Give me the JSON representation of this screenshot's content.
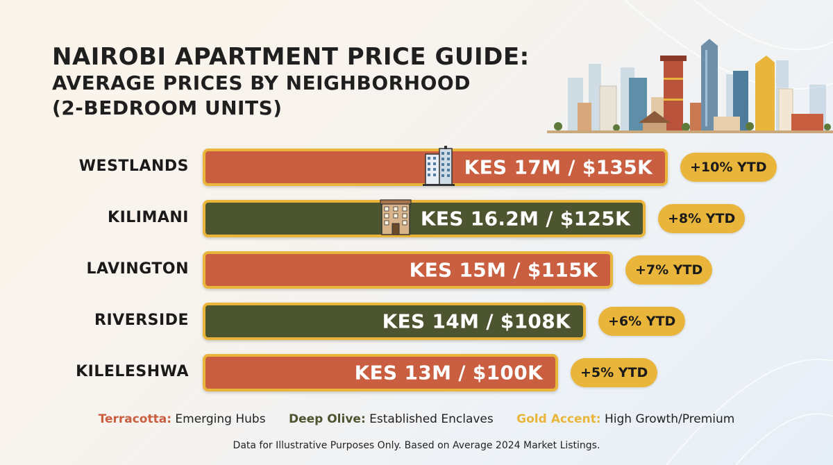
{
  "title": {
    "line1": "NAIROBI APARTMENT PRICE GUIDE:",
    "line2": "AVERAGE PRICES BY NEIGHBORHOOD",
    "line3": "(2-BEDROOM UNITS)"
  },
  "colors": {
    "terracotta": "#c95e40",
    "olive": "#4d5530",
    "gold": "#e9b53a"
  },
  "chart_data": {
    "type": "bar",
    "orientation": "horizontal",
    "title": "NAIROBI APARTMENT PRICE GUIDE: AVERAGE PRICES BY NEIGHBORHOOD (2-BEDROOM UNITS)",
    "categories": [
      "WESTLANDS",
      "KILIMANI",
      "LAVINGTON",
      "RIVERSIDE",
      "KILELESHWA"
    ],
    "values_kes_millions": [
      17,
      16.2,
      15,
      14,
      13
    ],
    "values_usd_thousands": [
      135,
      125,
      115,
      108,
      100
    ],
    "bar_labels": [
      "KES 17M / $135K",
      "KES 16.2M / $125K",
      "KES 15M / $115K",
      "KES 14M / $108K",
      "KES 13M / $100K"
    ],
    "ytd_growth_pct": [
      10,
      8,
      7,
      6,
      5
    ],
    "ytd_labels": [
      "+10% YTD",
      "+8% YTD",
      "+7% YTD",
      "+6% YTD",
      "+5% YTD"
    ],
    "bar_colors": [
      "terracotta",
      "olive",
      "terracotta",
      "olive",
      "terracotta"
    ],
    "bar_icons": [
      "skyscraper-icon",
      "apartment-building-icon",
      "",
      "",
      ""
    ],
    "grid": false
  },
  "legend": [
    {
      "key": "Terracotta:",
      "desc": "Emerging Hubs",
      "color": "#c95e40"
    },
    {
      "key": "Deep Olive:",
      "desc": "Established Enclaves",
      "color": "#4d5530"
    },
    {
      "key": "Gold Accent:",
      "desc": "High Growth/Premium",
      "color": "#e9b53a"
    }
  ],
  "footnote": "Data for Illustrative Purposes Only. Based on Average 2024 Market Listings."
}
